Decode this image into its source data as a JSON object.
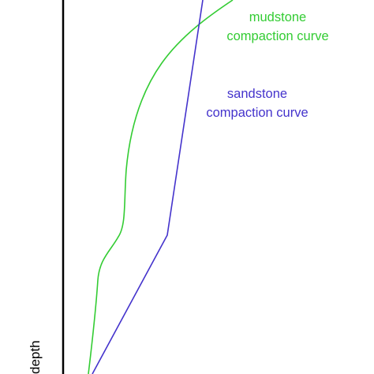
{
  "diagram": {
    "axis_label": "depth",
    "mudstone": {
      "label_line1": "mudstone",
      "label_line2": "compaction curve",
      "color": "#33cc33"
    },
    "sandstone": {
      "label_line1": "sandstone",
      "label_line2": "compaction curve",
      "color": "#4433cc"
    },
    "axis_color": "#000000"
  }
}
